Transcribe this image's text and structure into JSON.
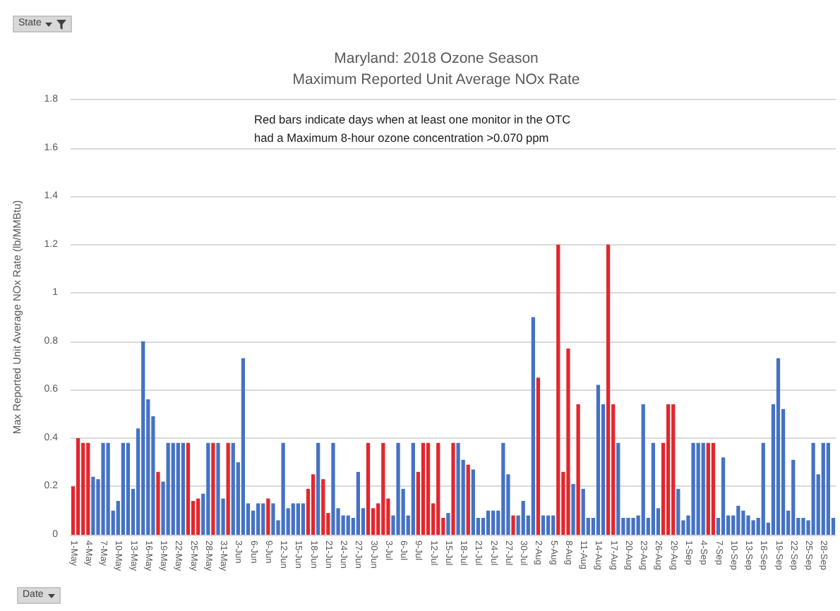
{
  "chart_data": {
    "type": "bar",
    "title": "Maryland: 2018 Ozone Season",
    "subtitle": "Maximum Reported Unit Average NOx Rate",
    "ylabel": "Max Reported Unit Average NOx Rate (lb/MMBtu)",
    "categories": [
      "1-May",
      null,
      null,
      "4-May",
      null,
      null,
      "7-May",
      null,
      null,
      "10-May",
      null,
      null,
      "13-May",
      null,
      null,
      "16-May",
      null,
      null,
      "19-May",
      null,
      null,
      "22-May",
      null,
      null,
      "25-May",
      null,
      null,
      "28-May",
      null,
      null,
      "31-May",
      null,
      null,
      "3-Jun",
      null,
      null,
      "6-Jun",
      null,
      null,
      "9-Jun",
      null,
      null,
      "12-Jun",
      null,
      null,
      "15-Jun",
      null,
      null,
      "18-Jun",
      null,
      null,
      "21-Jun",
      null,
      null,
      "24-Jun",
      null,
      null,
      "27-Jun",
      null,
      null,
      "30-Jun",
      null,
      null,
      "3-Jul",
      null,
      null,
      "6-Jul",
      null,
      null,
      "9-Jul",
      null,
      null,
      "12-Jul",
      null,
      null,
      "15-Jul",
      null,
      null,
      "18-Jul",
      null,
      null,
      "21-Jul",
      null,
      null,
      "24-Jul",
      null,
      null,
      "27-Jul",
      null,
      null,
      "30-Jul",
      null,
      null,
      "2-Aug",
      null,
      null,
      "5-Aug",
      null,
      null,
      "8-Aug",
      null,
      null,
      "11-Aug",
      null,
      null,
      "14-Aug",
      null,
      null,
      "17-Aug",
      null,
      null,
      "20-Aug",
      null,
      null,
      "23-Aug",
      null,
      null,
      "26-Aug",
      null,
      null,
      "29-Aug",
      null,
      null,
      "1-Sep",
      null,
      null,
      "4-Sep",
      null,
      null,
      "7-Sep",
      null,
      null,
      "10-Sep",
      null,
      null,
      "13-Sep",
      null,
      null,
      "16-Sep",
      null,
      null,
      "19-Sep",
      null,
      null,
      "22-Sep",
      null,
      null,
      "25-Sep",
      null,
      null,
      "28-Sep",
      null,
      null
    ],
    "values": [
      0.2,
      0.4,
      0.38,
      0.38,
      0.24,
      0.23,
      0.38,
      0.38,
      0.1,
      0.14,
      0.38,
      0.38,
      0.19,
      0.44,
      0.8,
      0.56,
      0.49,
      0.26,
      0.22,
      0.38,
      0.38,
      0.38,
      0.38,
      0.38,
      0.14,
      0.15,
      0.17,
      0.38,
      0.38,
      0.38,
      0.15,
      0.38,
      0.38,
      0.3,
      0.73,
      0.13,
      0.1,
      0.13,
      0.13,
      0.15,
      0.13,
      0.06,
      0.38,
      0.11,
      0.13,
      0.13,
      0.13,
      0.19,
      0.25,
      0.38,
      0.23,
      0.09,
      0.38,
      0.11,
      0.08,
      0.08,
      0.07,
      0.26,
      0.11,
      0.38,
      0.11,
      0.13,
      0.38,
      0.15,
      0.08,
      0.38,
      0.19,
      0.08,
      0.38,
      0.26,
      0.38,
      0.38,
      0.13,
      0.38,
      0.07,
      0.09,
      0.38,
      0.38,
      0.31,
      0.29,
      0.27,
      0.07,
      0.07,
      0.1,
      0.1,
      0.1,
      0.38,
      0.25,
      0.08,
      0.08,
      0.14,
      0.08,
      0.9,
      0.65,
      0.08,
      0.08,
      0.08,
      1.2,
      0.26,
      0.77,
      0.21,
      0.54,
      0.19,
      0.07,
      0.07,
      0.62,
      0.54,
      1.2,
      0.54,
      0.38,
      0.07,
      0.07,
      0.07,
      0.08,
      0.54,
      0.07,
      0.38,
      0.11,
      0.38,
      0.54,
      0.54,
      0.19,
      0.06,
      0.08,
      0.38,
      0.38,
      0.38,
      0.38,
      0.38,
      0.07,
      0.32,
      0.08,
      0.08,
      0.12,
      0.1,
      0.08,
      0.06,
      0.07,
      0.38,
      0.05,
      0.54,
      0.73,
      0.52,
      0.1,
      0.31,
      0.07,
      0.07,
      0.06,
      0.38,
      0.25,
      0.38,
      0.38,
      0.07
    ],
    "colors": [
      "#e3262d",
      "#e3262d",
      "#e3262d",
      "#e3262d",
      "#4472c4",
      "#4472c4",
      "#4472c4",
      "#4472c4",
      "#4472c4",
      "#4472c4",
      "#4472c4",
      "#4472c4",
      "#4472c4",
      "#4472c4",
      "#4472c4",
      "#4472c4",
      "#4472c4",
      "#e3262d",
      "#4472c4",
      "#4472c4",
      "#4472c4",
      "#4472c4",
      "#4472c4",
      "#e3262d",
      "#e3262d",
      "#e3262d",
      "#4472c4",
      "#4472c4",
      "#e3262d",
      "#4472c4",
      "#4472c4",
      "#e3262d",
      "#4472c4",
      "#4472c4",
      "#4472c4",
      "#4472c4",
      "#4472c4",
      "#4472c4",
      "#4472c4",
      "#e3262d",
      "#4472c4",
      "#4472c4",
      "#4472c4",
      "#4472c4",
      "#4472c4",
      "#4472c4",
      "#4472c4",
      "#e3262d",
      "#e3262d",
      "#4472c4",
      "#e3262d",
      "#e3262d",
      "#4472c4",
      "#4472c4",
      "#4472c4",
      "#4472c4",
      "#4472c4",
      "#4472c4",
      "#4472c4",
      "#e3262d",
      "#e3262d",
      "#e3262d",
      "#e3262d",
      "#e3262d",
      "#4472c4",
      "#4472c4",
      "#4472c4",
      "#4472c4",
      "#4472c4",
      "#e3262d",
      "#e3262d",
      "#e3262d",
      "#e3262d",
      "#e3262d",
      "#e3262d",
      "#4472c4",
      "#e3262d",
      "#4472c4",
      "#4472c4",
      "#e3262d",
      "#4472c4",
      "#4472c4",
      "#4472c4",
      "#4472c4",
      "#4472c4",
      "#4472c4",
      "#4472c4",
      "#4472c4",
      "#e3262d",
      "#4472c4",
      "#4472c4",
      "#4472c4",
      "#4472c4",
      "#e3262d",
      "#4472c4",
      "#4472c4",
      "#4472c4",
      "#e3262d",
      "#e3262d",
      "#e3262d",
      "#4472c4",
      "#e3262d",
      "#4472c4",
      "#4472c4",
      "#4472c4",
      "#4472c4",
      "#4472c4",
      "#e3262d",
      "#e3262d",
      "#4472c4",
      "#4472c4",
      "#4472c4",
      "#4472c4",
      "#4472c4",
      "#4472c4",
      "#4472c4",
      "#4472c4",
      "#4472c4",
      "#e3262d",
      "#e3262d",
      "#e3262d",
      "#4472c4",
      "#4472c4",
      "#4472c4",
      "#4472c4",
      "#4472c4",
      "#4472c4",
      "#e3262d",
      "#e3262d",
      "#4472c4",
      "#4472c4",
      "#4472c4",
      "#4472c4",
      "#4472c4",
      "#4472c4",
      "#4472c4",
      "#4472c4",
      "#4472c4",
      "#4472c4",
      "#4472c4",
      "#4472c4",
      "#4472c4",
      "#4472c4",
      "#4472c4",
      "#4472c4",
      "#4472c4",
      "#4472c4",
      "#4472c4",
      "#4472c4",
      "#4472c4",
      "#4472c4",
      "#4472c4",
      "#4472c4"
    ],
    "ylim": [
      0,
      1.8
    ],
    "yticks": [
      0,
      0.2,
      0.4,
      0.6,
      0.8,
      1,
      1.2,
      1.4,
      1.6,
      1.8
    ],
    "grid": "y",
    "annotations": [
      "Red bars indicate days when at least one monitor in the OTC\nhad a Maximum 8-hour ozone concentration >0.070 ppm",
      "State",
      "Date"
    ]
  }
}
